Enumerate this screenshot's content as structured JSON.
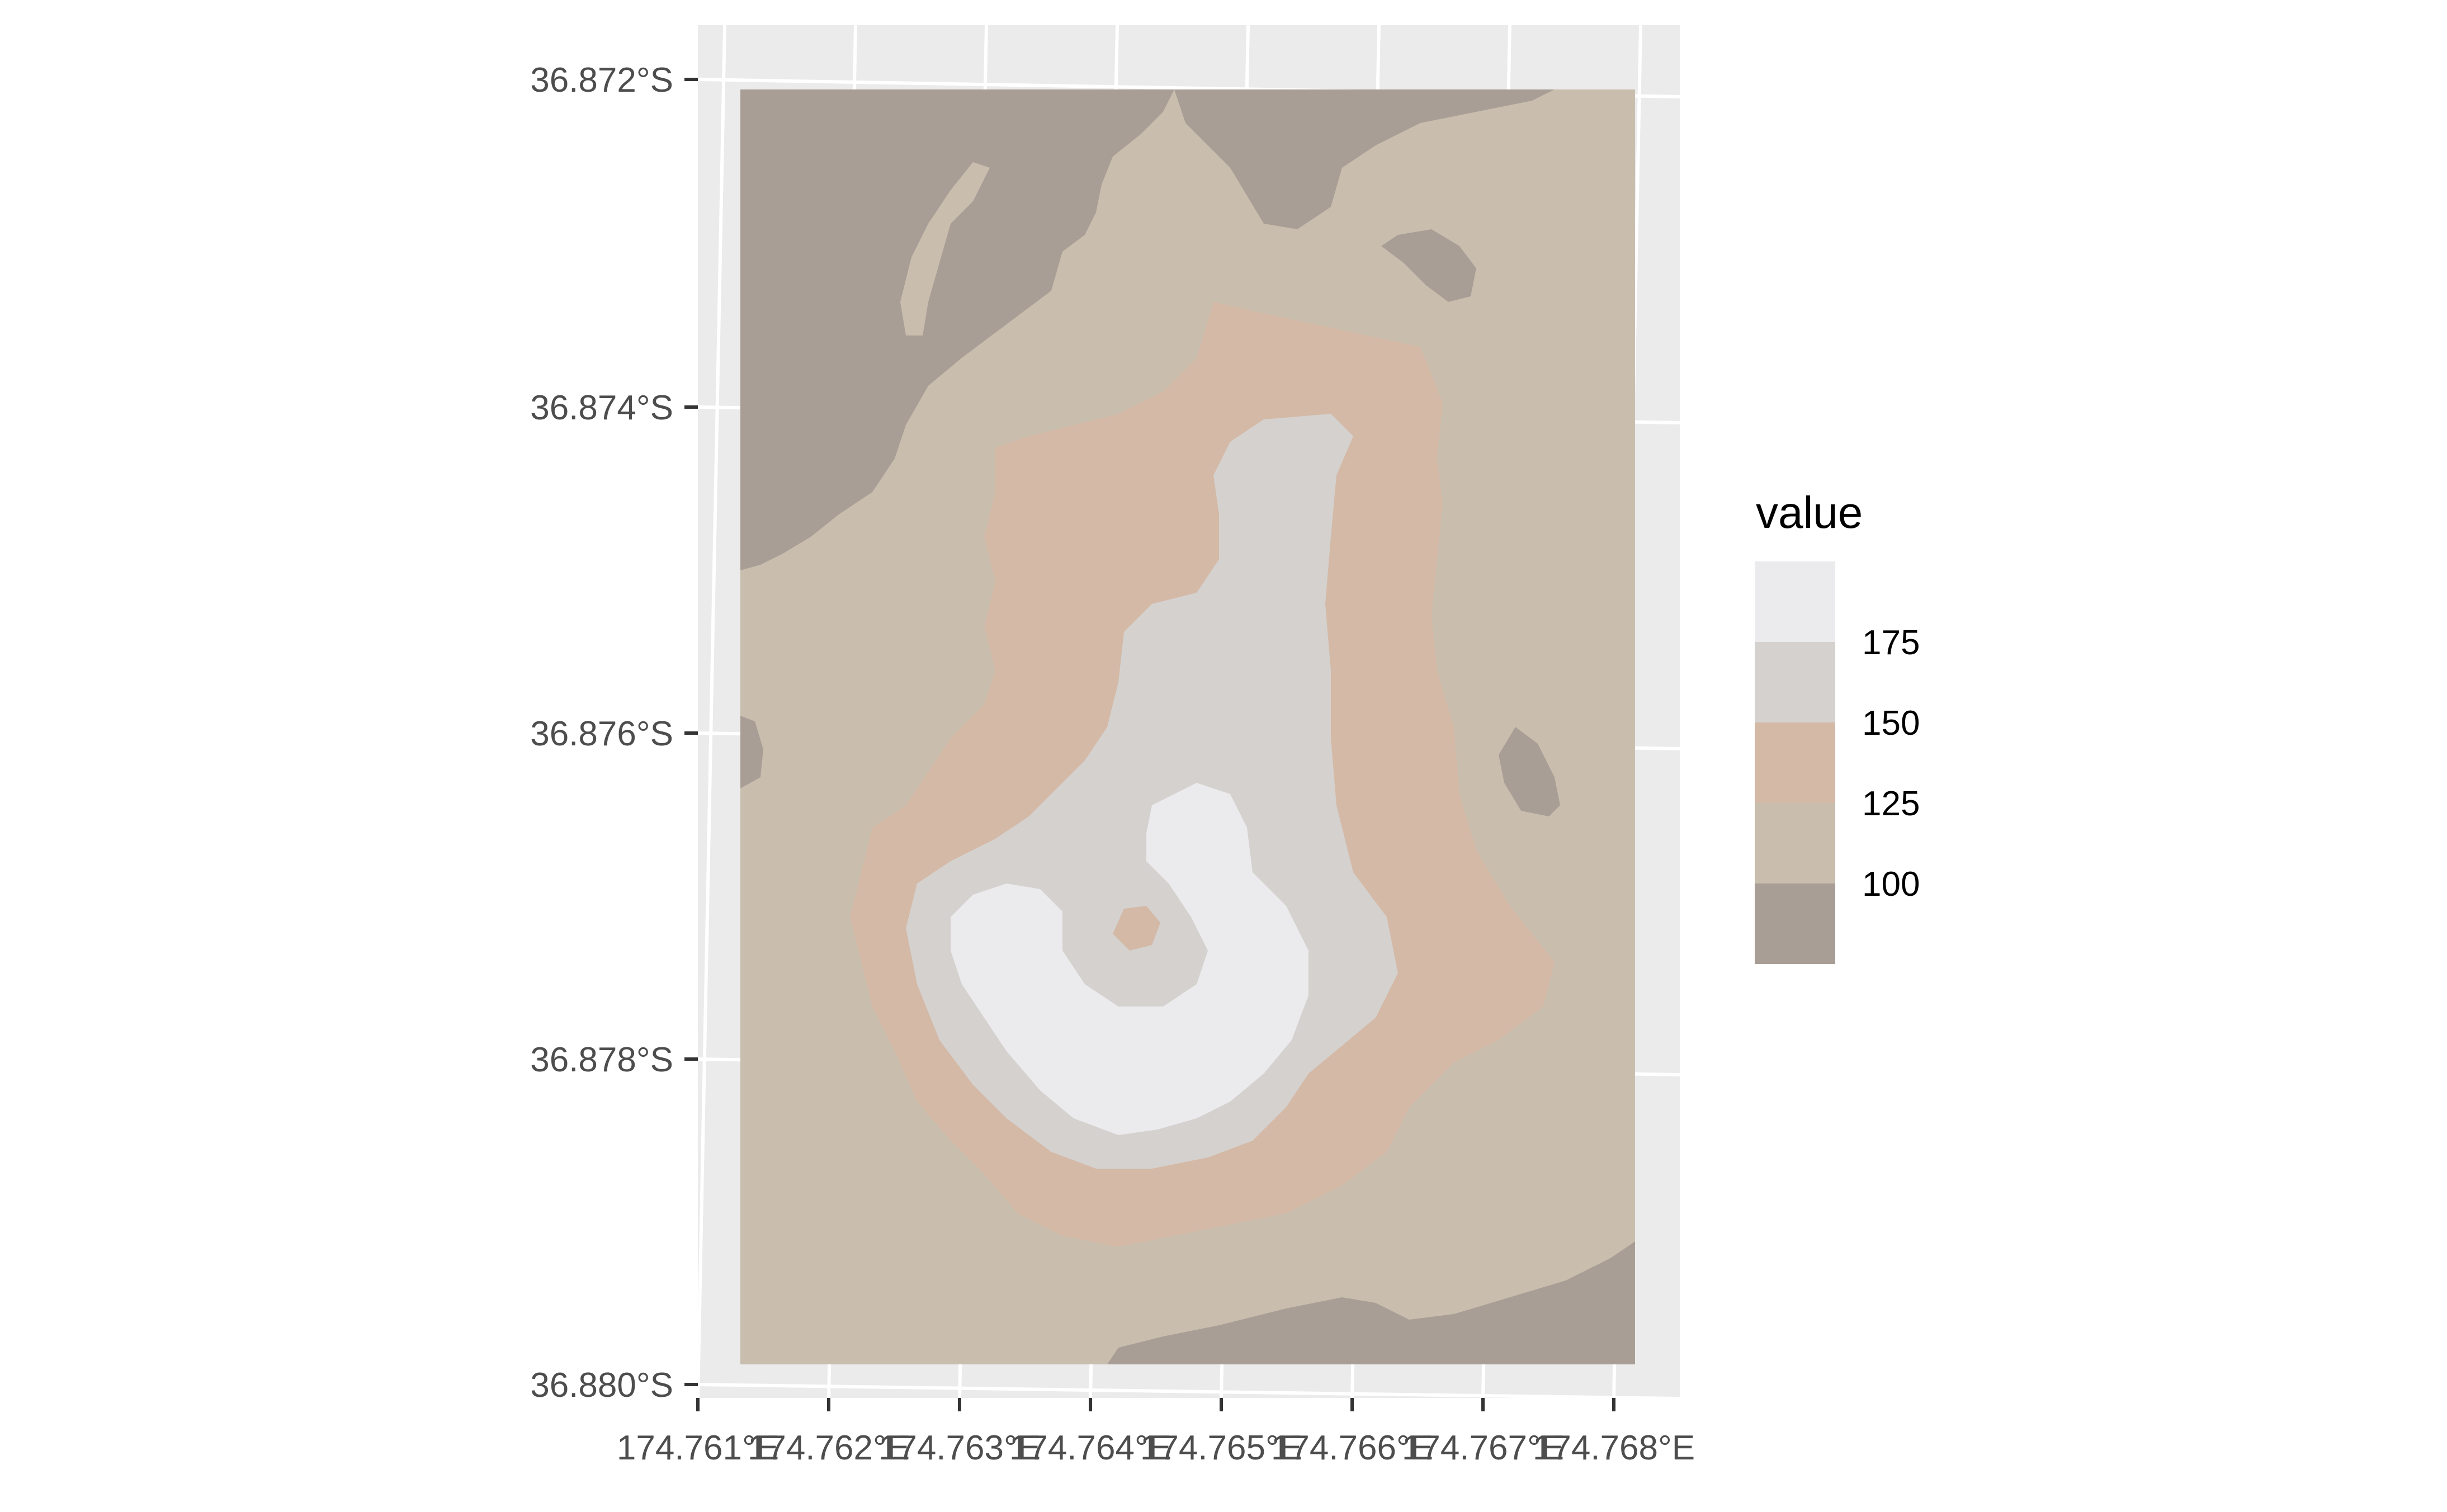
{
  "chart_data": {
    "type": "heatmap",
    "title": "",
    "xlabel": "",
    "ylabel": "",
    "x_ticks": [
      "174.761°E",
      "174.762°E",
      "174.763°E",
      "174.764°E",
      "174.765°E",
      "174.766°E",
      "174.767°E",
      "174.768°E"
    ],
    "y_ticks": [
      "36.872°S",
      "36.874°S",
      "36.876°S",
      "36.878°S",
      "36.880°S"
    ],
    "xlim": [
      174.761,
      174.768
    ],
    "ylim": [
      -36.88,
      -36.872
    ],
    "grid": true,
    "legend": {
      "title": "value",
      "placement": "right",
      "breaks": [
        "175",
        "150",
        "125",
        "100"
      ],
      "colors": [
        "#EBEBED",
        "#D5D1CE",
        "#D3B9A6",
        "#C9BEAE",
        "#A99E95"
      ]
    },
    "panel_background": "#EBEBEB",
    "raster": {
      "description_levels": [
        {
          "range": "<100",
          "color": "#A99E95"
        },
        {
          "range": "100-125",
          "color": "#C9BEAE"
        },
        {
          "range": "125-150",
          "color": "#D3B9A6"
        },
        {
          "range": "150-175",
          "color": "#D5D1CE"
        },
        {
          "range": ">175",
          "color": "#EBEBED"
        }
      ]
    }
  }
}
